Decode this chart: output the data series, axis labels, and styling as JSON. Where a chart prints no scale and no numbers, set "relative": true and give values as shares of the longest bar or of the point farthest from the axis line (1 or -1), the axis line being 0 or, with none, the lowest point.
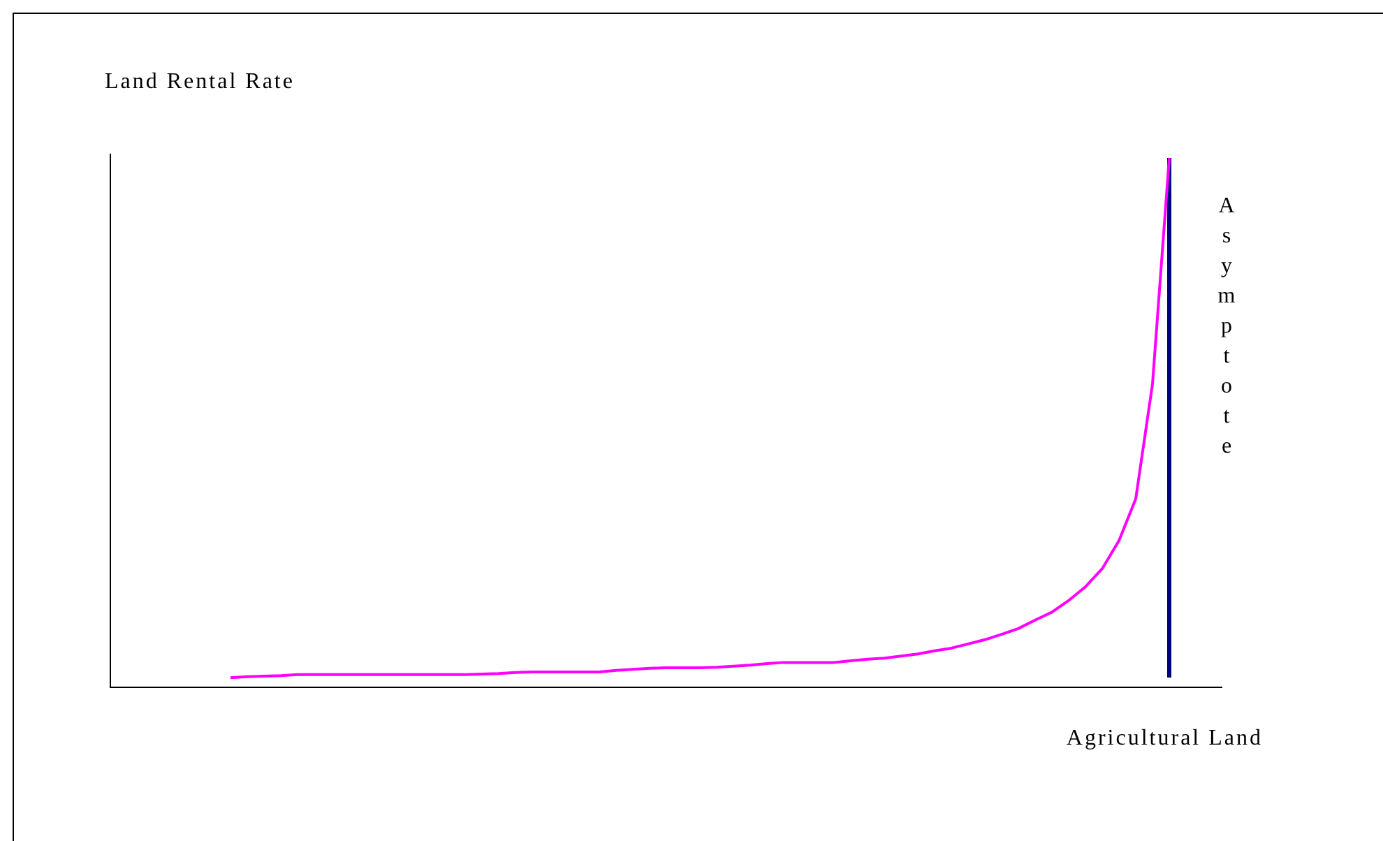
{
  "chart_data": {
    "type": "line",
    "relative": true,
    "ylabel": "Land Rental Rate",
    "xlabel": "Agricultural Land",
    "categories": [
      null,
      null,
      null,
      null,
      null,
      null,
      null,
      null,
      null,
      null,
      null,
      null,
      null,
      null,
      null,
      null,
      null,
      null,
      null,
      null,
      null,
      null,
      null,
      null,
      null,
      null,
      null,
      null,
      null,
      null,
      null,
      null,
      null,
      null,
      null,
      null,
      null,
      null,
      null,
      null,
      null,
      null,
      null,
      null,
      null,
      null,
      null,
      null,
      null,
      null,
      null,
      null,
      null,
      null,
      null,
      null,
      null
    ],
    "series": [
      {
        "color": "#ff00ff",
        "values": [
          0.018,
          0.02,
          0.021,
          0.022,
          0.024,
          0.024,
          0.024,
          0.024,
          0.024,
          0.024,
          0.024,
          0.024,
          0.024,
          0.024,
          0.024,
          0.025,
          0.026,
          0.028,
          0.029,
          0.029,
          0.029,
          0.029,
          0.029,
          0.032,
          0.034,
          0.036,
          0.037,
          0.037,
          0.037,
          0.038,
          0.04,
          0.042,
          0.045,
          0.047,
          0.047,
          0.047,
          0.047,
          0.05,
          0.053,
          0.055,
          0.059,
          0.063,
          0.069,
          0.074,
          0.082,
          0.09,
          0.1,
          0.111,
          0.127,
          0.142,
          0.164,
          0.19,
          0.224,
          0.277,
          0.356,
          0.573,
          1
        ]
      }
    ],
    "annotations": [
      "Asymptote"
    ],
    "legend": false,
    "marker": "none",
    "line_style": "solid"
  }
}
